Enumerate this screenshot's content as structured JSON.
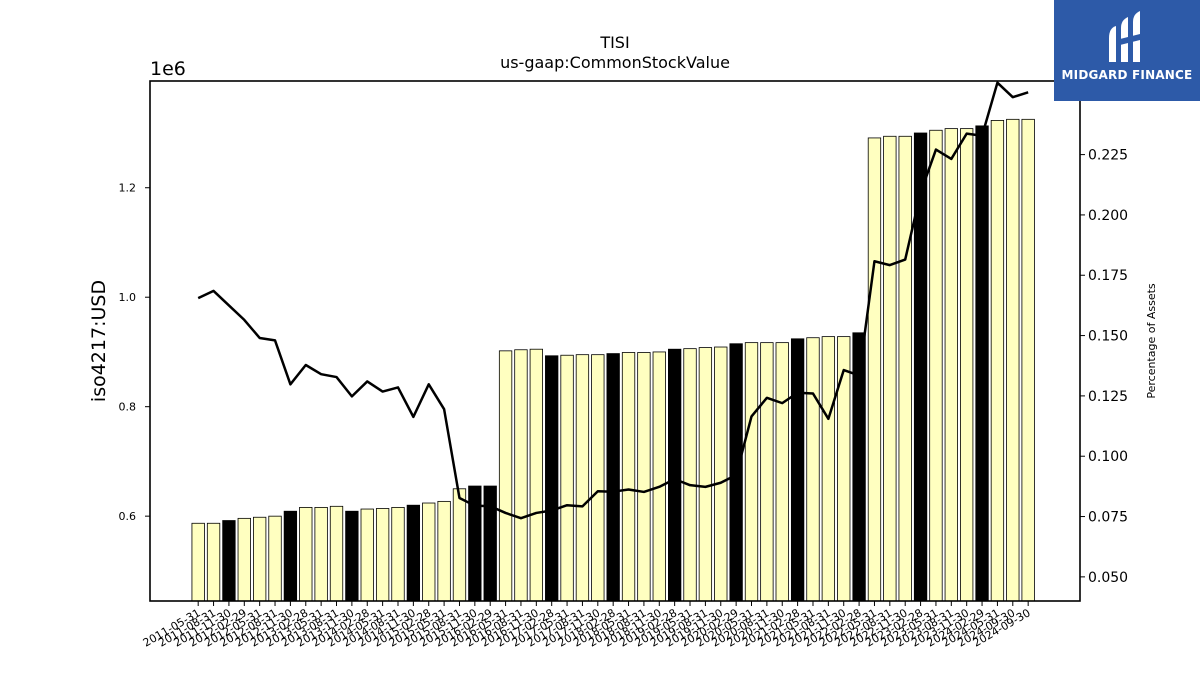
{
  "chart_data": {
    "type": "bar",
    "title": "TISI",
    "subtitle": "us-gaap:CommonStockValue",
    "ylabel": "iso4217:USD",
    "y_offset_text": "1e6",
    "y2label": "Percentage of Assets",
    "ylim": [
      445000,
      1395000
    ],
    "y2lim": [
      0.04,
      0.2555
    ],
    "yticks": [
      {
        "value": 600000,
        "label": "0.6"
      },
      {
        "value": 800000,
        "label": "0.8"
      },
      {
        "value": 1000000,
        "label": "1.0"
      },
      {
        "value": 1200000,
        "label": "1.2"
      }
    ],
    "y2ticks": [
      {
        "value": 0.05,
        "label": "0.050"
      },
      {
        "value": 0.075,
        "label": "0.075"
      },
      {
        "value": 0.1,
        "label": "0.100"
      },
      {
        "value": 0.125,
        "label": "0.125"
      },
      {
        "value": 0.15,
        "label": "0.150"
      },
      {
        "value": 0.175,
        "label": "0.175"
      },
      {
        "value": 0.2,
        "label": "0.200"
      },
      {
        "value": 0.225,
        "label": "0.225"
      }
    ],
    "categories": [
      "2011-05-31",
      "2011-08-31",
      "2011-11-30",
      "2012-02-29",
      "2012-05-31",
      "2012-08-31",
      "2012-11-30",
      "2013-02-28",
      "2013-05-31",
      "2013-08-31",
      "2013-11-30",
      "2014-02-28",
      "2014-05-31",
      "2014-08-31",
      "2014-11-30",
      "2015-02-28",
      "2015-05-31",
      "2015-08-31",
      "2015-11-30",
      "2016-02-29",
      "2016-05-31",
      "2016-08-31",
      "2016-11-30",
      "2017-02-28",
      "2017-05-31",
      "2017-08-31",
      "2017-11-30",
      "2018-02-28",
      "2018-05-31",
      "2018-08-31",
      "2018-11-30",
      "2019-02-28",
      "2019-05-31",
      "2019-08-31",
      "2019-11-30",
      "2020-02-29",
      "2020-05-31",
      "2020-08-31",
      "2020-11-30",
      "2021-02-28",
      "2021-05-31",
      "2021-08-31",
      "2021-11-30",
      "2022-02-28",
      "2022-05-31",
      "2022-08-31",
      "2022-11-30",
      "2023-02-28",
      "2023-05-31",
      "2023-08-31",
      "2023-11-30",
      "2024-02-29",
      "2024-05-31",
      "2024-09-30",
      "2024-09-30"
    ],
    "tick_labels": [
      "2011-05-31",
      "2011-08-31",
      "2011-11-30",
      "2012-02-29",
      "2012-05-31",
      "2012-08-31",
      "2012-11-30",
      "2013-02-28",
      "2013-05-31",
      "2013-08-31",
      "2013-11-30",
      "2014-02-28",
      "2014-05-31",
      "2014-08-31",
      "2014-11-30",
      "2015-02-28",
      "2015-05-31",
      "2015-08-31",
      "2015-11-30",
      "2016-02-29",
      "2016-05-31",
      "2016-08-31",
      "2016-11-30",
      "2017-02-28",
      "2017-05-31",
      "2017-08-31",
      "2017-11-30",
      "2018-02-28",
      "2018-05-31",
      "2018-08-31",
      "2018-11-30",
      "2019-02-28",
      "2019-05-31",
      "2019-08-31",
      "2019-11-30",
      "2020-02-29",
      "2020-05-31",
      "2020-08-31",
      "2020-11-30",
      "2021-02-28",
      "2021-05-31",
      "2021-08-31",
      "2021-11-30",
      "2022-02-28",
      "2022-05-31",
      "2022-08-31",
      "2022-11-30",
      "2023-02-28",
      "2023-05-31",
      "2023-08-31",
      "2023-11-30",
      "2024-02-29",
      "2024-05-31",
      "2024-09-30",
      "2024-09-30"
    ],
    "series": [
      {
        "kind": "bar",
        "values": [
          587000,
          587000,
          592000,
          596000,
          598000,
          600000,
          609000,
          616000,
          616000,
          618000,
          609000,
          613000,
          614000,
          616000,
          620000,
          624000,
          627000,
          650000,
          655000,
          655000,
          902000,
          904000,
          905000,
          893000,
          894000,
          895000,
          895000,
          897000,
          899000,
          899000,
          900000,
          905000,
          906000,
          908000,
          909000,
          915000,
          917000,
          917000,
          917000,
          924000,
          926000,
          928000,
          928000,
          935000,
          1291000,
          1294000,
          1294000,
          1300000,
          1305000,
          1308000,
          1308000,
          1313000,
          1323000,
          1325000,
          1325000
        ],
        "fill_colors": [
          "#ffffc0",
          "#ffffc0",
          "#000000",
          "#ffffc0",
          "#ffffc0",
          "#ffffc0",
          "#000000",
          "#ffffc0",
          "#ffffc0",
          "#ffffc0",
          "#000000",
          "#ffffc0",
          "#ffffc0",
          "#ffffc0",
          "#000000",
          "#ffffc0",
          "#ffffc0",
          "#ffffc0",
          "#000000",
          "#000000",
          "#ffffc0",
          "#ffffc0",
          "#ffffc0",
          "#000000",
          "#ffffc0",
          "#ffffc0",
          "#ffffc0",
          "#000000",
          "#ffffc0",
          "#ffffc0",
          "#ffffc0",
          "#000000",
          "#ffffc0",
          "#ffffc0",
          "#ffffc0",
          "#000000",
          "#ffffc0",
          "#ffffc0",
          "#ffffc0",
          "#000000",
          "#ffffc0",
          "#ffffc0",
          "#ffffc0",
          "#000000",
          "#ffffc0",
          "#ffffc0",
          "#ffffc0",
          "#000000",
          "#ffffc0",
          "#ffffc0",
          "#ffffc0",
          "#000000",
          "#ffffc0",
          "#ffffc0",
          "#ffffc0"
        ]
      },
      {
        "kind": "line",
        "axis": "right",
        "color": "#000000",
        "values": [
          0.1655,
          0.1685,
          0.1625,
          0.1565,
          0.149,
          0.148,
          0.1298,
          0.1378,
          0.134,
          0.1328,
          0.1248,
          0.131,
          0.1268,
          0.1285,
          0.1163,
          0.1298,
          0.1195,
          0.0827,
          0.0795,
          0.0793,
          0.0765,
          0.0743,
          0.0765,
          0.0775,
          0.0797,
          0.0792,
          0.0855,
          0.0853,
          0.0862,
          0.0852,
          0.0873,
          0.0905,
          0.088,
          0.0873,
          0.089,
          0.0922,
          0.1165,
          0.1242,
          0.122,
          0.1263,
          0.126,
          0.1155,
          0.1357,
          0.1335,
          0.1808,
          0.1792,
          0.1815,
          0.2092,
          0.2271,
          0.2232,
          0.2337,
          0.2328,
          0.2548,
          0.2488,
          0.2508
        ]
      }
    ],
    "grid": false,
    "legend": "none"
  },
  "logo": {
    "name": "MIDGARD FINANCE",
    "background": "#2d5aa8"
  }
}
